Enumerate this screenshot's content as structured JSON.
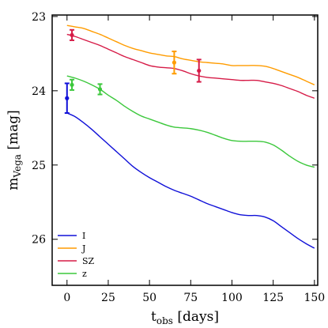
{
  "chart_data": {
    "type": "line",
    "xlabel": {
      "main": "t",
      "sub": "obs",
      "rest": " [days]"
    },
    "ylabel": {
      "main": "m",
      "sub": "Vega",
      "rest": " [mag]"
    },
    "xlim": [
      -9,
      152
    ],
    "ylim": [
      26.62,
      22.98
    ],
    "y_inverted": true,
    "grid": false,
    "legend_position": "bottom-left",
    "xticks": [
      0,
      25,
      50,
      75,
      100,
      125,
      150
    ],
    "yticks": [
      23,
      24,
      25,
      26
    ],
    "series": [
      {
        "name": "I",
        "color": "#1010d8",
        "x": [
          0,
          5,
          10,
          15,
          20,
          25,
          30,
          35,
          40,
          45,
          50,
          55,
          60,
          65,
          70,
          75,
          80,
          85,
          90,
          95,
          100,
          105,
          110,
          115,
          120,
          125,
          130,
          135,
          140,
          145,
          150
        ],
        "values": [
          24.3,
          24.35,
          24.43,
          24.52,
          24.62,
          24.72,
          24.82,
          24.92,
          25.02,
          25.1,
          25.17,
          25.23,
          25.29,
          25.34,
          25.38,
          25.42,
          25.47,
          25.52,
          25.56,
          25.6,
          25.64,
          25.67,
          25.68,
          25.68,
          25.7,
          25.75,
          25.83,
          25.91,
          25.99,
          26.06,
          26.12
        ]
      },
      {
        "name": "J",
        "color": "#ff9c00",
        "x": [
          0,
          5,
          10,
          15,
          20,
          25,
          30,
          35,
          40,
          45,
          50,
          55,
          60,
          65,
          70,
          75,
          80,
          85,
          90,
          95,
          100,
          105,
          110,
          115,
          120,
          125,
          130,
          135,
          140,
          145,
          150
        ],
        "values": [
          23.12,
          23.14,
          23.16,
          23.2,
          23.24,
          23.29,
          23.34,
          23.39,
          23.43,
          23.46,
          23.49,
          23.51,
          23.53,
          23.54,
          23.57,
          23.59,
          23.61,
          23.62,
          23.63,
          23.64,
          23.66,
          23.66,
          23.66,
          23.66,
          23.67,
          23.7,
          23.74,
          23.78,
          23.82,
          23.87,
          23.92
        ]
      },
      {
        "name": "SZ",
        "color": "#d61b47",
        "x": [
          0,
          5,
          10,
          15,
          20,
          25,
          30,
          35,
          40,
          45,
          50,
          55,
          60,
          65,
          70,
          75,
          80,
          85,
          90,
          95,
          100,
          105,
          110,
          115,
          120,
          125,
          130,
          135,
          140,
          145,
          150
        ],
        "values": [
          23.24,
          23.27,
          23.31,
          23.35,
          23.39,
          23.44,
          23.49,
          23.54,
          23.58,
          23.62,
          23.66,
          23.68,
          23.69,
          23.7,
          23.73,
          23.77,
          23.8,
          23.82,
          23.83,
          23.84,
          23.85,
          23.86,
          23.86,
          23.86,
          23.88,
          23.9,
          23.93,
          23.97,
          24.01,
          24.06,
          24.1
        ]
      },
      {
        "name": "z",
        "color": "#3cc83c",
        "x": [
          0,
          5,
          10,
          15,
          20,
          25,
          30,
          35,
          40,
          45,
          50,
          55,
          60,
          65,
          70,
          75,
          80,
          85,
          90,
          95,
          100,
          105,
          110,
          115,
          120,
          125,
          130,
          135,
          140,
          145,
          150
        ],
        "values": [
          23.8,
          23.83,
          23.87,
          23.92,
          23.98,
          24.06,
          24.13,
          24.21,
          24.28,
          24.34,
          24.38,
          24.42,
          24.46,
          24.49,
          24.5,
          24.51,
          24.53,
          24.56,
          24.6,
          24.64,
          24.67,
          24.68,
          24.68,
          24.68,
          24.69,
          24.73,
          24.8,
          24.88,
          24.95,
          25.0,
          25.03
        ]
      }
    ],
    "observations": [
      {
        "series": "I",
        "x": 0,
        "y": 24.1,
        "err": 0.2
      },
      {
        "series": "z",
        "x": 3,
        "y": 23.92,
        "err": 0.07
      },
      {
        "series": "z",
        "x": 20,
        "y": 23.98,
        "err": 0.07
      },
      {
        "series": "SZ",
        "x": 3,
        "y": 23.25,
        "err": 0.07
      },
      {
        "series": "J",
        "x": 65,
        "y": 23.62,
        "err": 0.15
      },
      {
        "series": "SZ",
        "x": 80,
        "y": 23.73,
        "err": 0.15
      }
    ]
  }
}
